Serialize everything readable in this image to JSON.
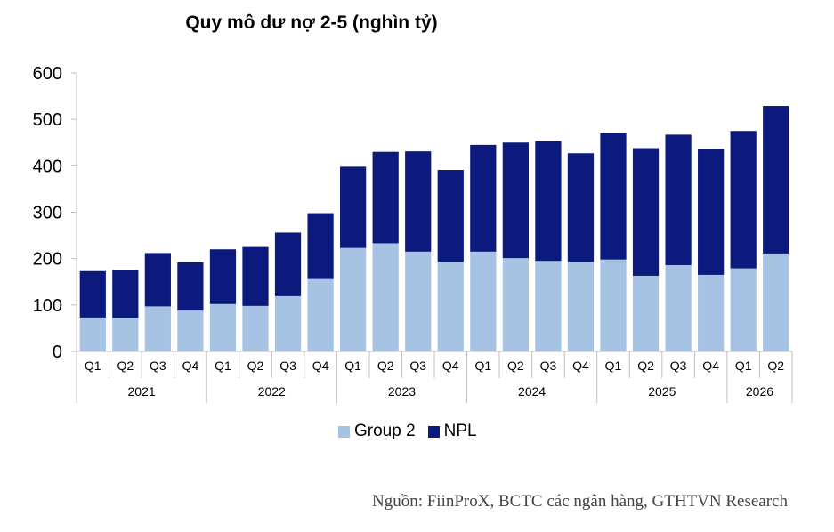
{
  "chart_data": {
    "type": "bar",
    "stacked": true,
    "title": "Quy mô dư nợ 2-5 (nghìn tỷ)",
    "categories": [
      "Q1",
      "Q2",
      "Q3",
      "Q4",
      "Q1",
      "Q2",
      "Q3",
      "Q4",
      "Q1",
      "Q2",
      "Q3",
      "Q4",
      "Q1",
      "Q2",
      "Q3",
      "Q4",
      "Q1",
      "Q2",
      "Q3",
      "Q4",
      "Q1",
      "Q2"
    ],
    "years": [
      {
        "label": "2021",
        "count": 4
      },
      {
        "label": "2022",
        "count": 4
      },
      {
        "label": "2023",
        "count": 4
      },
      {
        "label": "2024",
        "count": 4
      },
      {
        "label": "2025",
        "count": 4
      },
      {
        "label": "2026",
        "count": 2
      }
    ],
    "series": [
      {
        "name": "Group 2",
        "color": "#a6c3e4",
        "values": [
          73,
          72,
          97,
          88,
          102,
          98,
          119,
          156,
          223,
          233,
          215,
          193,
          215,
          201,
          195,
          193,
          198,
          163,
          186,
          165,
          179,
          211
        ]
      },
      {
        "name": "NPL",
        "color": "#0c1a7e",
        "values": [
          100,
          103,
          115,
          104,
          118,
          127,
          137,
          142,
          175,
          197,
          216,
          198,
          230,
          249,
          258,
          234,
          272,
          275,
          281,
          271,
          296,
          318
        ]
      }
    ],
    "ylim": [
      0,
      600
    ],
    "yticks": [
      0,
      100,
      200,
      300,
      400,
      500,
      600
    ],
    "grid": false,
    "legend": "bottom"
  },
  "source": "Nguồn: FiinProX, BCTC các ngân hàng, GTHTVN Research"
}
